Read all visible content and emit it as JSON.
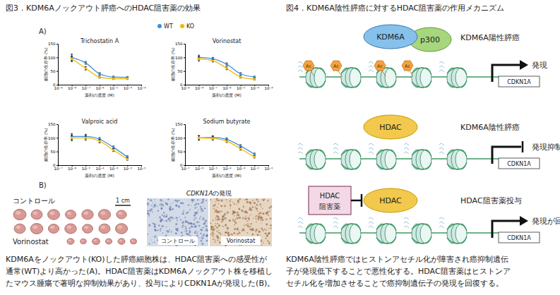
{
  "figure3": {
    "title": "図3．KDM6Aノックアウト膵癌へのHDAC阻害薬の効果",
    "panel_a": "A)",
    "panel_b": "B)",
    "tumors": {
      "control": "コントロール",
      "treated": "Vorinostat",
      "scale_bar": "1 cm"
    },
    "ihc": {
      "gene": "CDKN1A",
      "title_rest": "の発現",
      "control": "コントロール",
      "treated": "Vorinostat"
    },
    "caption": [
      "KDM6Aをノックアウト(KO)した膵癌細胞株は、HDAC阻害薬への感受性が",
      "通常(WT)より高かった(A)。HDAC阻害薬はKDM6Aノックアウト株を移植し",
      "たマウス腫瘍で著明な抑制効果があり、投与によりCDKN1Aが発現した(B)。"
    ]
  },
  "chart_data": [
    {
      "type": "line",
      "title": "Trichostatin A",
      "x_label": "薬剤の濃度 (M)",
      "y_label": "細胞の生存率 (%)",
      "log": "x",
      "marker": "circle",
      "x": [
        1e-08,
        1e-07,
        1e-06,
        1e-05,
        0.0001
      ],
      "xlim": [
        1e-09,
        0.001
      ],
      "xticks": [
        {
          "value": 1e-09,
          "label": "10⁻⁹"
        },
        {
          "value": 1e-08,
          "label": "10⁻⁸"
        },
        {
          "value": 1e-07,
          "label": "10⁻⁷"
        },
        {
          "value": 1e-06,
          "label": "10⁻⁶"
        },
        {
          "value": 1e-05,
          "label": "10⁻⁵"
        },
        {
          "value": 0.0001,
          "label": "10⁻⁴"
        },
        {
          "value": 0.001,
          "label": "10⁻³"
        }
      ],
      "ylim": [
        0,
        150
      ],
      "yticks": [
        0,
        50,
        100,
        150
      ],
      "series": [
        {
          "name": "WT",
          "color": "#3f8fd8",
          "values": [
            100,
            80,
            40,
            28,
            27
          ],
          "errors": [
            12,
            5,
            4,
            3,
            3
          ]
        },
        {
          "name": "KO",
          "color": "#f2b705",
          "values": [
            95,
            60,
            28,
            22,
            22
          ],
          "errors": [
            10,
            6,
            4,
            3,
            3
          ]
        }
      ]
    },
    {
      "type": "line",
      "title": "Vorinostat",
      "x_label": "薬剤の濃度 (M)",
      "y_label": "細胞の生存率 (%)",
      "log": "x",
      "marker": "circle",
      "x": [
        1e-08,
        1e-07,
        1e-06,
        1e-05,
        0.0001
      ],
      "xlim": [
        1e-09,
        0.001
      ],
      "xticks": [
        {
          "value": 1e-09,
          "label": "10⁻⁹"
        },
        {
          "value": 1e-08,
          "label": "10⁻⁸"
        },
        {
          "value": 1e-07,
          "label": "10⁻⁷"
        },
        {
          "value": 1e-06,
          "label": "10⁻⁶"
        },
        {
          "value": 1e-05,
          "label": "10⁻⁵"
        },
        {
          "value": 0.0001,
          "label": "10⁻⁴"
        },
        {
          "value": 0.001,
          "label": "10⁻³"
        }
      ],
      "ylim": [
        0,
        150
      ],
      "yticks": [
        0,
        50,
        100,
        150
      ],
      "series": [
        {
          "color": "#3f8fd8",
          "values": [
            100,
            95,
            75,
            40,
            28
          ],
          "errors": [
            8,
            5,
            5,
            4,
            3
          ]
        },
        {
          "color": "#f2b705",
          "values": [
            95,
            88,
            60,
            28,
            20
          ],
          "errors": [
            8,
            5,
            5,
            4,
            3
          ]
        }
      ]
    },
    {
      "type": "line",
      "title": "Valproic acid",
      "x_label": "薬剤の濃度 (M)",
      "y_label": "細胞の生存率 (%)",
      "log": "x",
      "marker": "circle",
      "x": [
        1e-06,
        1e-05,
        0.0001,
        0.001,
        0.01
      ],
      "xlim": [
        1e-07,
        0.1
      ],
      "xticks": [
        {
          "value": 1e-07,
          "label": "10⁻⁷"
        },
        {
          "value": 1e-06,
          "label": "10⁻⁶"
        },
        {
          "value": 1e-05,
          "label": "10⁻⁵"
        },
        {
          "value": 0.0001,
          "label": "10⁻⁴"
        },
        {
          "value": 0.001,
          "label": "10⁻³"
        },
        {
          "value": 0.01,
          "label": "10⁻²"
        },
        {
          "value": 0.1,
          "label": "10⁻¹"
        }
      ],
      "ylim": [
        0,
        150
      ],
      "yticks": [
        0,
        50,
        100,
        150
      ],
      "series": [
        {
          "color": "#3f8fd8",
          "values": [
            105,
            105,
            95,
            65,
            30
          ],
          "errors": [
            10,
            8,
            6,
            5,
            4
          ]
        },
        {
          "color": "#f2b705",
          "values": [
            100,
            100,
            88,
            55,
            22
          ],
          "errors": [
            10,
            8,
            6,
            5,
            4
          ]
        }
      ]
    },
    {
      "type": "line",
      "title": "Sodium butyrate",
      "x_label": "薬剤の濃度 (M)",
      "y_label": "細胞の生存率 (%)",
      "log": "x",
      "marker": "circle",
      "x": [
        1e-06,
        1e-05,
        0.0001,
        0.001,
        0.01
      ],
      "xlim": [
        1e-07,
        0.1
      ],
      "xticks": [
        {
          "value": 1e-07,
          "label": "10⁻⁷"
        },
        {
          "value": 1e-06,
          "label": "10⁻⁶"
        },
        {
          "value": 1e-05,
          "label": "10⁻⁵"
        },
        {
          "value": 0.0001,
          "label": "10⁻⁴"
        },
        {
          "value": 0.001,
          "label": "10⁻³"
        },
        {
          "value": 0.01,
          "label": "10⁻²"
        },
        {
          "value": 0.1,
          "label": "10⁻¹"
        }
      ],
      "ylim": [
        0,
        150
      ],
      "yticks": [
        0,
        50,
        100,
        150
      ],
      "series": [
        {
          "color": "#3f8fd8",
          "values": [
            100,
            102,
            95,
            70,
            40
          ],
          "errors": [
            8,
            6,
            5,
            5,
            4
          ]
        },
        {
          "color": "#f2b705",
          "values": [
            100,
            98,
            88,
            60,
            30
          ],
          "errors": [
            8,
            6,
            5,
            5,
            4
          ]
        }
      ]
    }
  ],
  "figure4": {
    "title": "図4．KDM6A陰性膵癌に対するHDAC阻害薬の作用メカニズム",
    "sections": [
      {
        "proteins": [
          "KDM6A",
          "p300"
        ],
        "label": "KDM6A陽性膵癌",
        "acetyl": [
          "Ac",
          "Ac",
          "Ac",
          "Ac"
        ],
        "gene": "CDKN1A",
        "expression": "発現"
      },
      {
        "proteins": [
          "HDAC"
        ],
        "label": "KDM6A陰性膵癌",
        "gene": "CDKN1A",
        "expression": "発現抑制"
      },
      {
        "inhibitor": [
          "HDAC",
          "阻害薬"
        ],
        "proteins": [
          "HDAC"
        ],
        "label": "HDAC阻害薬投与",
        "gene": "CDKN1A",
        "expression": "発現が回復"
      }
    ],
    "caption": [
      "KDM6A陰性膵癌ではヒストンアセチル化が障害され癌抑制遺伝",
      "子が発現低下することで悪性化する。HDAC阻害薬はヒストンア",
      "セチル化を増加させることで癌抑制遺伝子の発現を回復する。"
    ]
  }
}
